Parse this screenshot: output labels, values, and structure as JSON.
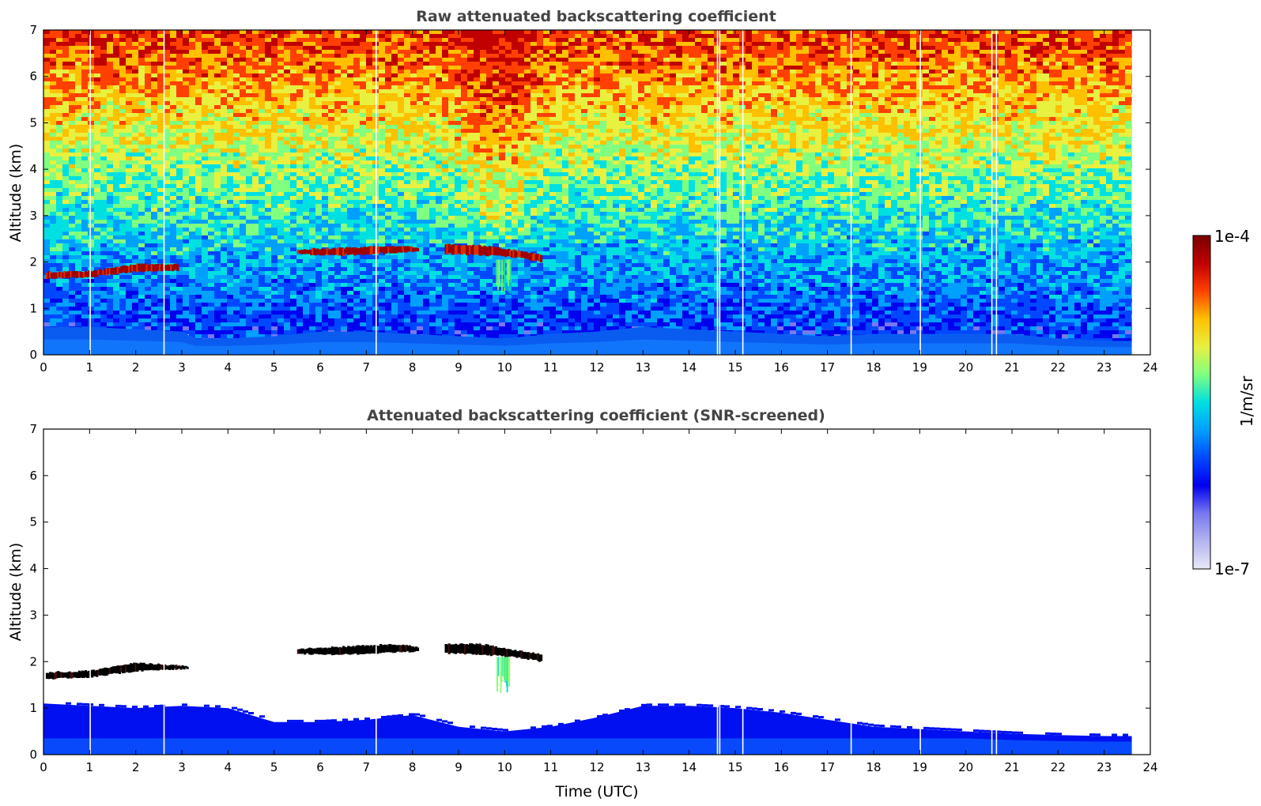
{
  "chart_data": [
    {
      "type": "heatmap",
      "title": "Raw attenuated backscattering coefficient",
      "xlabel": "",
      "ylabel": "Altitude (km)",
      "xlim": [
        0,
        24
      ],
      "ylim": [
        0,
        7
      ],
      "x_ticks": [
        "0",
        "1",
        "2",
        "3",
        "4",
        "5",
        "6",
        "7",
        "8",
        "9",
        "10",
        "11",
        "12",
        "13",
        "14",
        "15",
        "16",
        "17",
        "18",
        "19",
        "20",
        "21",
        "22",
        "23",
        "24"
      ],
      "y_ticks": [
        "0",
        "1",
        "2",
        "3",
        "4",
        "5",
        "6",
        "7"
      ],
      "data_end_time": 23.6,
      "gap_times": [
        1.0,
        2.6,
        7.2,
        14.6,
        14.65,
        15.15,
        17.5,
        19.0,
        20.55,
        20.65
      ],
      "boundary_layer_top_km": [
        [
          0,
          0.6
        ],
        [
          1,
          0.6
        ],
        [
          2,
          0.55
        ],
        [
          3,
          0.5
        ],
        [
          3.3,
          0.35
        ],
        [
          4,
          0.35
        ],
        [
          5,
          0.4
        ],
        [
          6,
          0.5
        ],
        [
          7,
          0.5
        ],
        [
          8,
          0.45
        ],
        [
          9,
          0.4
        ],
        [
          10,
          0.35
        ],
        [
          11,
          0.45
        ],
        [
          12,
          0.5
        ],
        [
          13,
          0.6
        ],
        [
          14,
          0.55
        ],
        [
          15,
          0.5
        ],
        [
          16,
          0.45
        ],
        [
          17,
          0.4
        ],
        [
          18,
          0.45
        ],
        [
          19,
          0.45
        ],
        [
          20,
          0.45
        ],
        [
          21,
          0.45
        ],
        [
          22,
          0.35
        ],
        [
          23,
          0.3
        ],
        [
          23.6,
          0.3
        ]
      ],
      "cloud_layers": [
        {
          "x": [
            0.05,
            1.0,
            2.0,
            2.9
          ],
          "base_km": [
            1.65,
            1.68,
            1.8,
            1.82
          ],
          "top_km": [
            1.78,
            1.8,
            1.95,
            1.95
          ]
        },
        {
          "x": [
            5.5,
            6.5,
            7.5,
            8.1
          ],
          "base_km": [
            2.17,
            2.15,
            2.2,
            2.22
          ],
          "top_km": [
            2.27,
            2.3,
            2.35,
            2.32
          ]
        },
        {
          "x": [
            8.7,
            9.5,
            10.2,
            10.8
          ],
          "base_km": [
            2.18,
            2.15,
            2.1,
            2.0
          ],
          "top_km": [
            2.38,
            2.35,
            2.25,
            2.15
          ]
        }
      ],
      "precipitation": [
        {
          "time": 9.95,
          "from_km": 2.05,
          "to_km": 1.3
        }
      ]
    },
    {
      "type": "heatmap",
      "title": "Attenuated backscattering coefficient (SNR-screened)",
      "xlabel": "Time (UTC)",
      "ylabel": "Altitude (km)",
      "xlim": [
        0,
        24
      ],
      "ylim": [
        0,
        7
      ],
      "x_ticks": [
        "0",
        "1",
        "2",
        "3",
        "4",
        "5",
        "6",
        "7",
        "8",
        "9",
        "10",
        "11",
        "12",
        "13",
        "14",
        "15",
        "16",
        "17",
        "18",
        "19",
        "20",
        "21",
        "22",
        "23",
        "24"
      ],
      "y_ticks": [
        "0",
        "1",
        "2",
        "3",
        "4",
        "5",
        "6",
        "7"
      ],
      "data_end_time": 23.6,
      "gap_times": [
        1.0,
        2.6,
        7.2,
        14.6,
        14.65,
        15.15,
        17.5,
        19.0,
        20.55,
        20.65
      ],
      "signal_top_km": [
        [
          0,
          1.1
        ],
        [
          1,
          1.05
        ],
        [
          2,
          1.0
        ],
        [
          3,
          1.05
        ],
        [
          4,
          1.0
        ],
        [
          5,
          0.7
        ],
        [
          6,
          0.7
        ],
        [
          7,
          0.75
        ],
        [
          8,
          0.85
        ],
        [
          9,
          0.6
        ],
        [
          10,
          0.5
        ],
        [
          11,
          0.6
        ],
        [
          12,
          0.8
        ],
        [
          13,
          1.05
        ],
        [
          14,
          1.05
        ],
        [
          15,
          1.0
        ],
        [
          16,
          0.9
        ],
        [
          17,
          0.75
        ],
        [
          18,
          0.6
        ],
        [
          19,
          0.55
        ],
        [
          20,
          0.5
        ],
        [
          21,
          0.45
        ],
        [
          22,
          0.42
        ],
        [
          23,
          0.4
        ],
        [
          23.6,
          0.4
        ]
      ],
      "cloud_layers": [
        {
          "x": [
            0.05,
            1.0,
            2.0,
            3.1
          ],
          "base_km": [
            1.63,
            1.67,
            1.8,
            1.85
          ],
          "top_km": [
            1.77,
            1.8,
            1.97,
            1.9
          ]
        },
        {
          "x": [
            5.5,
            6.5,
            7.5,
            8.1
          ],
          "base_km": [
            2.17,
            2.15,
            2.2,
            2.22
          ],
          "top_km": [
            2.27,
            2.32,
            2.37,
            2.32
          ]
        },
        {
          "x": [
            8.7,
            9.5,
            10.2,
            10.8
          ],
          "base_km": [
            2.18,
            2.15,
            2.1,
            2.0
          ],
          "top_km": [
            2.38,
            2.37,
            2.25,
            2.15
          ]
        }
      ],
      "precipitation": [
        {
          "time": 9.95,
          "from_km": 2.1,
          "to_km": 1.3
        }
      ]
    }
  ],
  "colorbar": {
    "label": "1/m/sr",
    "max_label": "1e-4",
    "min_label": "1e-7",
    "scale": "log",
    "colors": [
      "#e8e8f8",
      "#b4b4f0",
      "#7878f0",
      "#0000ee",
      "#0048ff",
      "#00a0ff",
      "#00e0e0",
      "#80ff80",
      "#e8f040",
      "#ffc000",
      "#ff4000",
      "#c00000",
      "#780000"
    ]
  }
}
